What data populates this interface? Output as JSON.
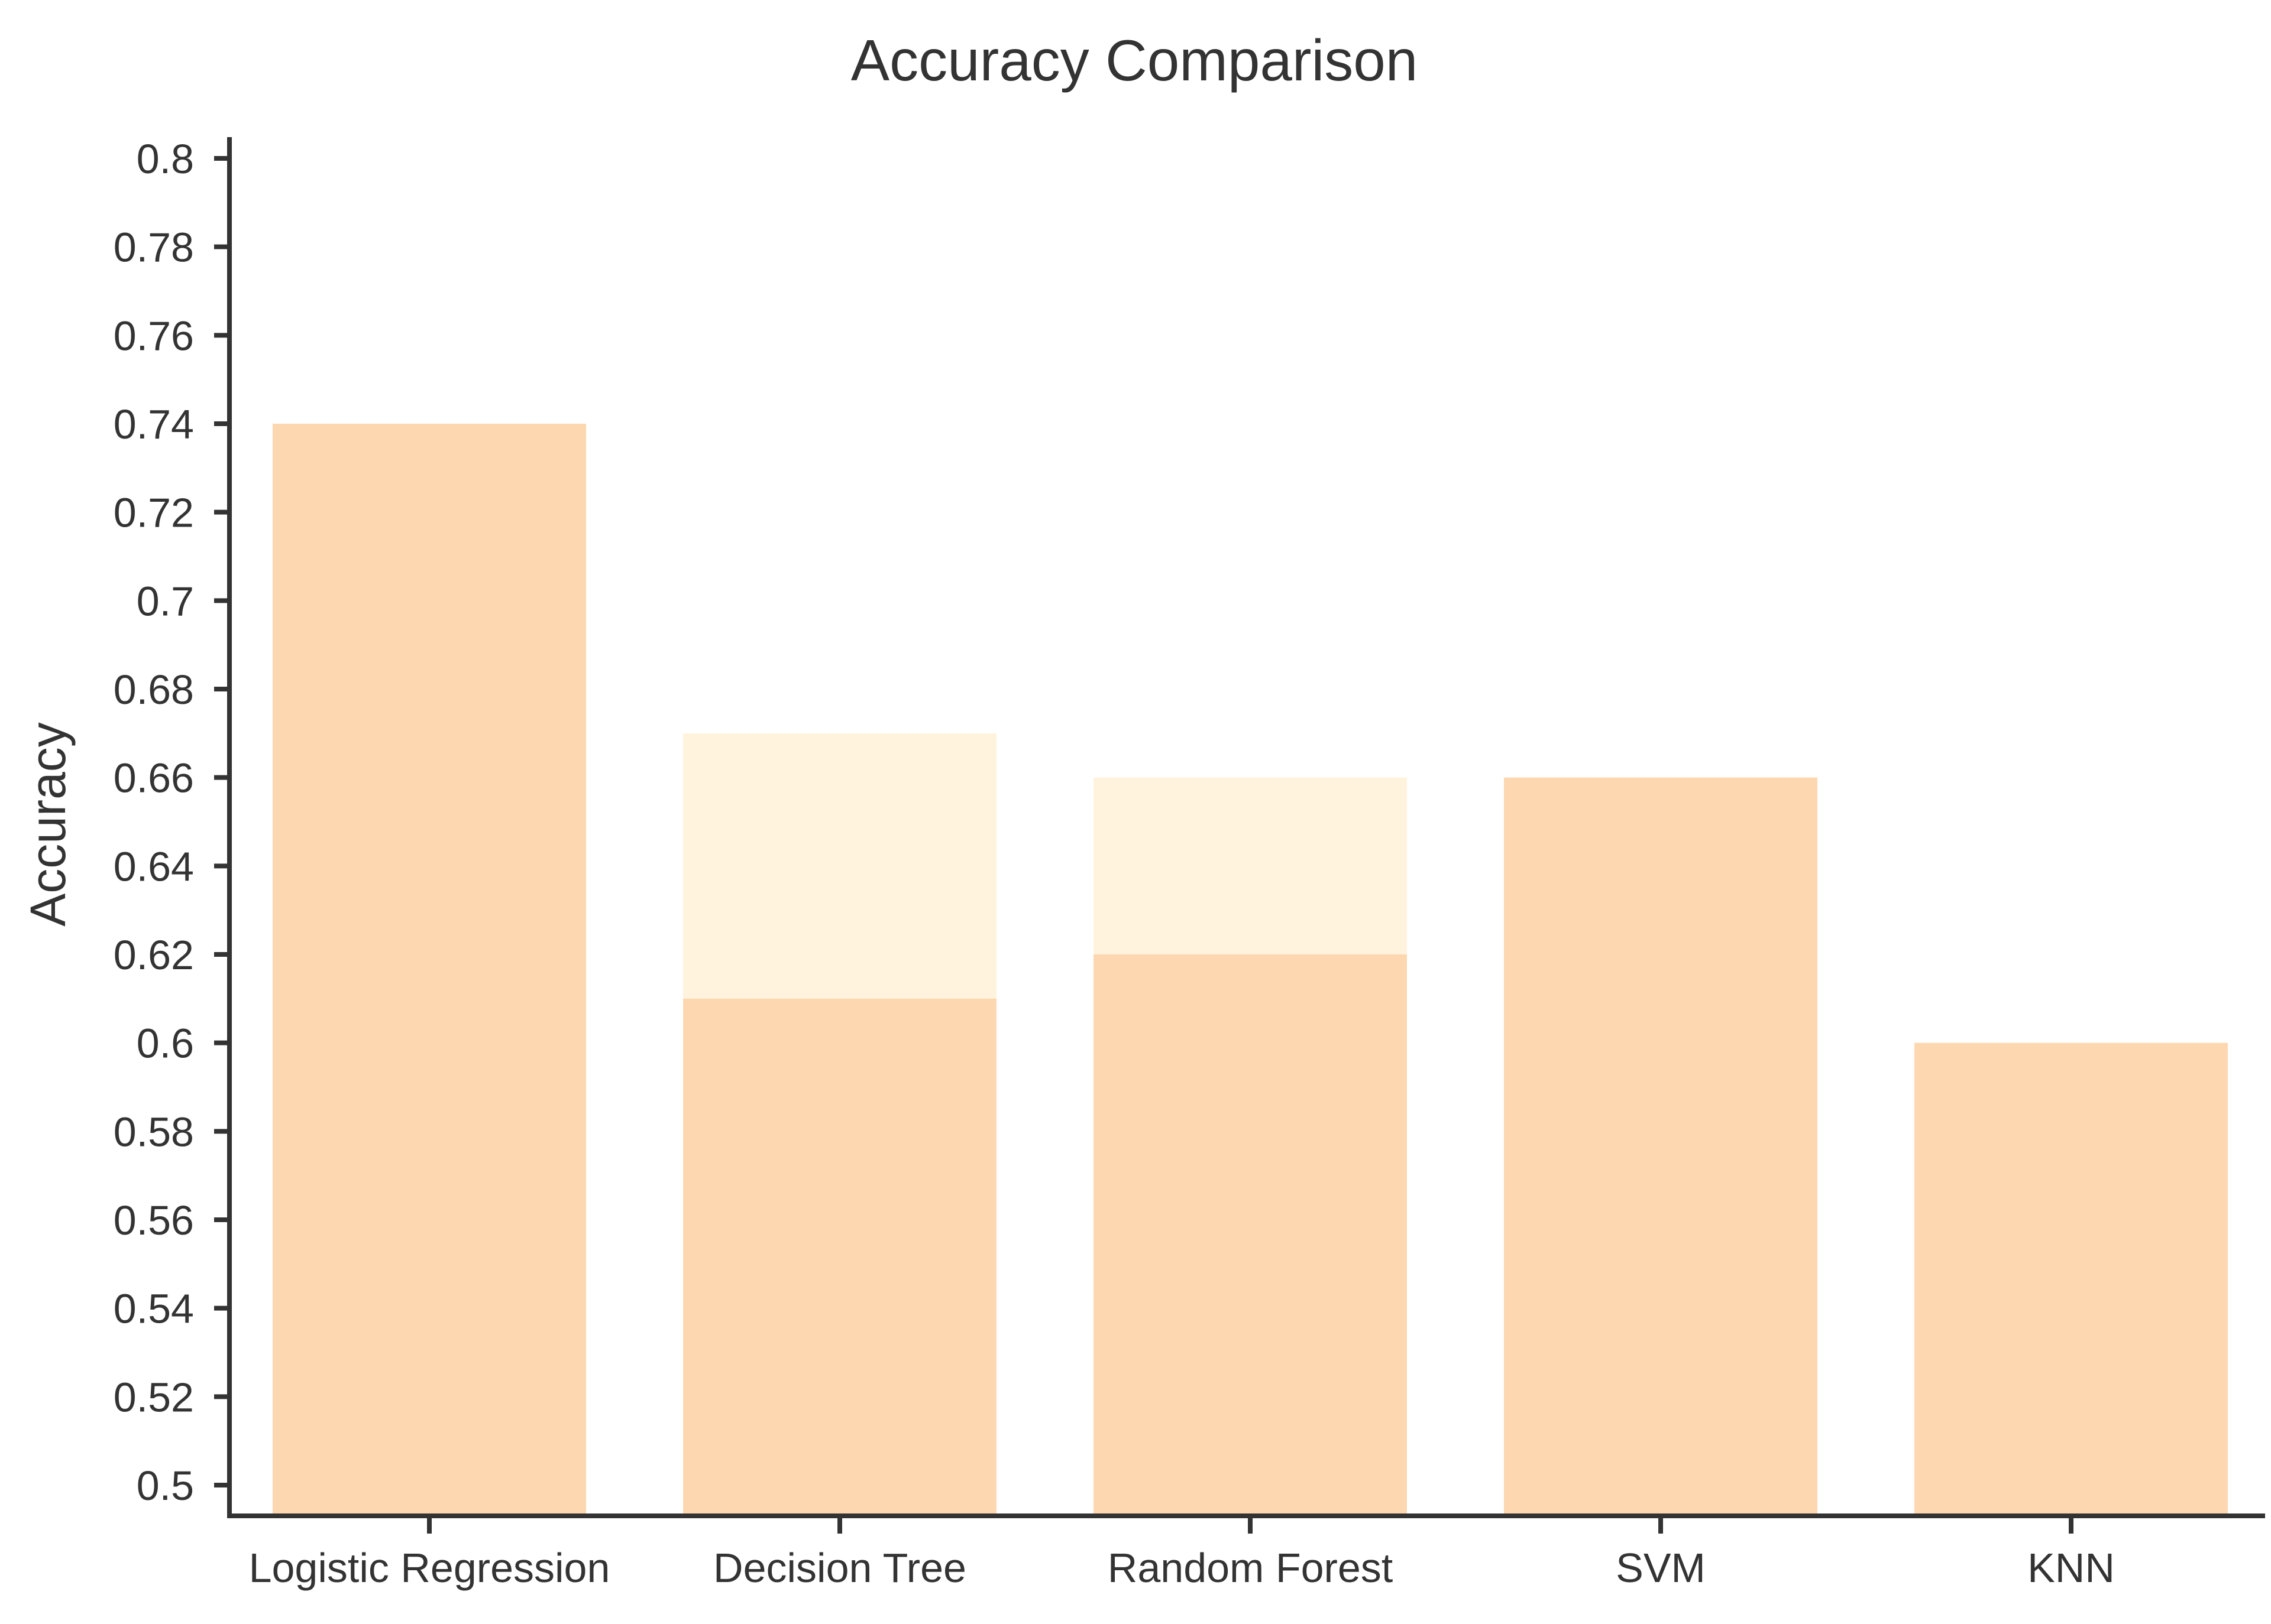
{
  "chart_data": {
    "type": "bar",
    "title": "Accuracy Comparison",
    "xlabel": "",
    "ylabel": "Accuracy",
    "categories": [
      "Logistic Regression",
      "Decision Tree",
      "Random Forest",
      "SVM",
      "KNN"
    ],
    "series": [
      {
        "values": [
          0.74,
          0.67,
          0.66,
          0.66,
          0.6
        ],
        "color": "#FFF3DD"
      },
      {
        "values": [
          0.74,
          0.61,
          0.62,
          0.66,
          0.6
        ],
        "color": "#FDD7B0"
      }
    ],
    "ylim": [
      0.5,
      0.8
    ],
    "yticks": [
      "0.5",
      "0.52",
      "0.54",
      "0.56",
      "0.58",
      "0.6",
      "0.62",
      "0.64",
      "0.66",
      "0.68",
      "0.7",
      "0.72",
      "0.74",
      "0.76",
      "0.78",
      "0.8"
    ],
    "grid": false,
    "colors": {
      "axis": "#333333",
      "text": "#333333",
      "background": "#ffffff"
    }
  }
}
